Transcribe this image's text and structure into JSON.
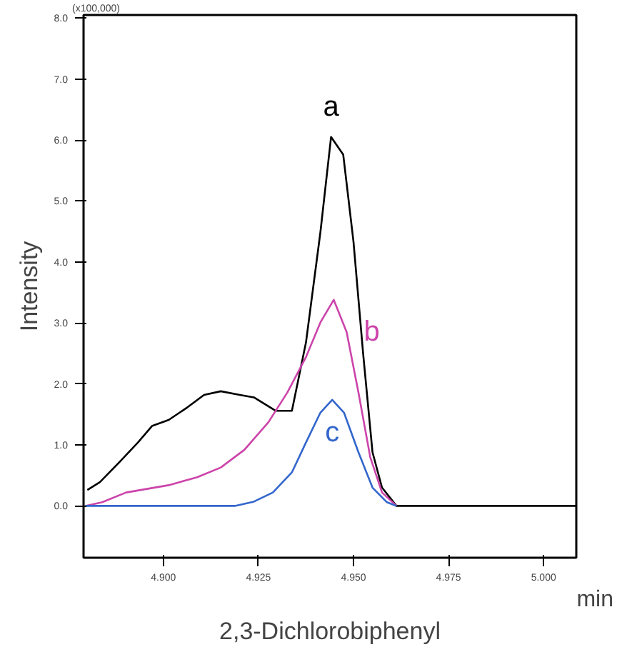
{
  "chart_data": {
    "type": "line",
    "title": "2,3-Dichlorobiphenyl",
    "xlabel": "min",
    "ylabel": "Intensity",
    "annotations": [
      "(x100,000)"
    ],
    "xlim": [
      4.879,
      5.0086
    ],
    "ylim": [
      -0.85,
      8.05
    ],
    "xticks": [
      {
        "value": 4.9,
        "label": "4.900"
      },
      {
        "value": 4.925,
        "label": "4.925"
      },
      {
        "value": 4.95,
        "label": "4.950"
      },
      {
        "value": 4.975,
        "label": "4.975"
      },
      {
        "value": 5.0,
        "label": "5.000"
      }
    ],
    "yticks": [
      {
        "value": 0,
        "label": "0.0"
      },
      {
        "value": 1,
        "label": "1.0"
      },
      {
        "value": 2,
        "label": "2.0"
      },
      {
        "value": 3,
        "label": "3.0"
      },
      {
        "value": 4,
        "label": "4.0"
      },
      {
        "value": 5,
        "label": "5.0"
      },
      {
        "value": 6,
        "label": "6.0"
      },
      {
        "value": 7,
        "label": "7.0"
      },
      {
        "value": 8,
        "label": "8.0"
      }
    ],
    "grid": false,
    "legend": false,
    "marker": "none",
    "line_style": "solid",
    "series": [
      {
        "name": "a",
        "color": "#000000",
        "x": [
          4.88,
          4.8833,
          4.8883,
          4.8933,
          4.897,
          4.9014,
          4.9064,
          4.9107,
          4.9151,
          4.9201,
          4.9238,
          4.9295,
          4.9338,
          4.9375,
          4.9413,
          4.9441,
          4.9473,
          4.95,
          4.9525,
          4.955,
          4.9575,
          4.9613,
          5.0086
        ],
        "values": [
          0.26,
          0.39,
          0.71,
          1.04,
          1.31,
          1.41,
          1.62,
          1.82,
          1.88,
          1.82,
          1.78,
          1.56,
          1.56,
          2.68,
          4.49,
          6.05,
          5.76,
          4.33,
          2.52,
          0.88,
          0.3,
          0,
          0
        ]
      },
      {
        "name": "b",
        "color": "#cc44aa",
        "x": [
          4.8795,
          4.8839,
          4.8902,
          4.9014,
          4.9089,
          4.9151,
          4.9213,
          4.9276,
          4.9326,
          4.9375,
          4.9413,
          4.9448,
          4.9482,
          4.9513,
          4.9544,
          4.9575,
          4.9613
        ],
        "values": [
          0,
          0.06,
          0.22,
          0.34,
          0.47,
          0.63,
          0.92,
          1.37,
          1.86,
          2.44,
          3.01,
          3.38,
          2.85,
          1.86,
          0.8,
          0.22,
          0
        ]
      },
      {
        "name": "c",
        "color": "#3366cc",
        "x": [
          4.8795,
          4.9188,
          4.9238,
          4.9288,
          4.9338,
          4.9375,
          4.9413,
          4.9444,
          4.9475,
          4.9513,
          4.955,
          4.9588,
          4.9613
        ],
        "values": [
          0,
          0,
          0.07,
          0.22,
          0.55,
          1.04,
          1.53,
          1.74,
          1.53,
          0.88,
          0.3,
          0.06,
          0
        ]
      }
    ]
  }
}
